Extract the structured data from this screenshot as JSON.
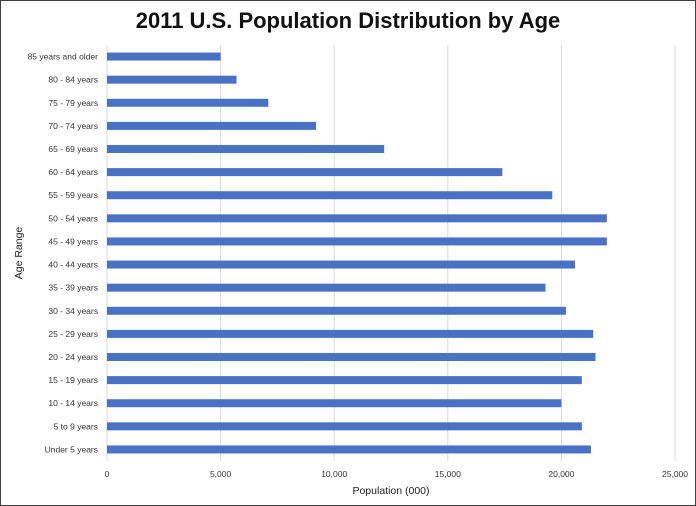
{
  "chart_data": {
    "type": "bar",
    "orientation": "horizontal",
    "title": "2011 U.S. Population Distribution by Age",
    "xlabel": "Population (000)",
    "ylabel": "Age Range",
    "xlim": [
      0,
      25000
    ],
    "xticks": [
      0,
      5000,
      10000,
      15000,
      20000,
      25000
    ],
    "xtick_labels": [
      "0",
      "5,000",
      "10,000",
      "15,000",
      "20,000",
      "25,000"
    ],
    "grid": "vertical",
    "bar_color": "#4a72c4",
    "grid_color": "#d9d9d9",
    "categories": [
      "85 years and older",
      "80 - 84 years",
      "75 - 79 years",
      "70 - 74 years",
      "65 - 69 years",
      "60 - 64 years",
      "55 - 59 years",
      "50 - 54 years",
      "45 - 49 years",
      "40 - 44 years",
      "35 - 39 years",
      "30 - 34 years",
      "25 - 29 years",
      "20 - 24 years",
      "15 - 19 years",
      "10 - 14 years",
      "5 to 9 years",
      "Under 5 years"
    ],
    "values": [
      5000,
      5700,
      7100,
      9200,
      12200,
      17400,
      19600,
      22000,
      22000,
      20600,
      19300,
      20200,
      21400,
      21500,
      20900,
      20000,
      20900,
      21300
    ]
  }
}
